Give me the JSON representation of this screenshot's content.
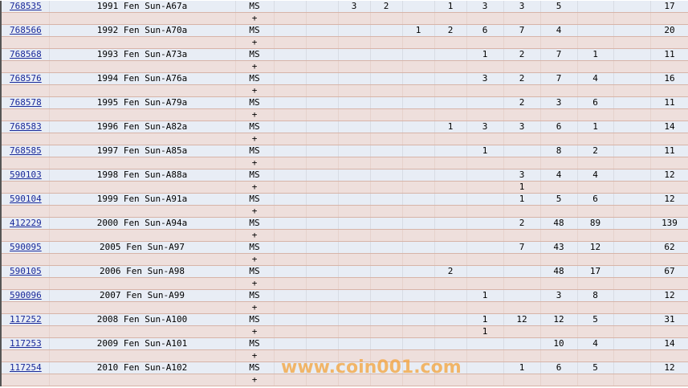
{
  "colors": {
    "main_row": "#e8edf5",
    "plus_row": "#eedfdc",
    "link": "#1a2a9a",
    "watermark": "#f5a33a"
  },
  "watermark": "www.coin001.com",
  "rows": [
    {
      "id": "768535",
      "name": "1991 Fen Sun-A67a",
      "grade": "MS",
      "plus": "+",
      "values": [
        "",
        "",
        "3",
        "2",
        "",
        "1",
        "3",
        "3",
        "5",
        "",
        "",
        ""
      ],
      "plus_values": [
        "",
        "",
        "",
        "",
        "",
        "",
        "",
        "",
        "",
        "",
        "",
        ""
      ],
      "total": "17"
    },
    {
      "id": "768566",
      "name": "1992 Fen Sun-A70a",
      "grade": "MS",
      "plus": "+",
      "values": [
        "",
        "",
        "",
        "",
        "1",
        "2",
        "6",
        "7",
        "4",
        "",
        "",
        ""
      ],
      "plus_values": [
        "",
        "",
        "",
        "",
        "",
        "",
        "",
        "",
        "",
        "",
        "",
        ""
      ],
      "total": "20"
    },
    {
      "id": "768568",
      "name": "1993 Fen Sun-A73a",
      "grade": "MS",
      "plus": "+",
      "values": [
        "",
        "",
        "",
        "",
        "",
        "",
        "1",
        "2",
        "7",
        "1",
        "",
        ""
      ],
      "plus_values": [
        "",
        "",
        "",
        "",
        "",
        "",
        "",
        "",
        "",
        "",
        "",
        ""
      ],
      "total": "11"
    },
    {
      "id": "768576",
      "name": "1994 Fen Sun-A76a",
      "grade": "MS",
      "plus": "+",
      "values": [
        "",
        "",
        "",
        "",
        "",
        "",
        "3",
        "2",
        "7",
        "4",
        "",
        ""
      ],
      "plus_values": [
        "",
        "",
        "",
        "",
        "",
        "",
        "",
        "",
        "",
        "",
        "",
        ""
      ],
      "total": "16"
    },
    {
      "id": "768578",
      "name": "1995 Fen Sun-A79a",
      "grade": "MS",
      "plus": "+",
      "values": [
        "",
        "",
        "",
        "",
        "",
        "",
        "",
        "2",
        "3",
        "6",
        "",
        ""
      ],
      "plus_values": [
        "",
        "",
        "",
        "",
        "",
        "",
        "",
        "",
        "",
        "",
        "",
        ""
      ],
      "total": "11"
    },
    {
      "id": "768583",
      "name": "1996 Fen Sun-A82a",
      "grade": "MS",
      "plus": "+",
      "values": [
        "",
        "",
        "",
        "",
        "",
        "1",
        "3",
        "3",
        "6",
        "1",
        "",
        ""
      ],
      "plus_values": [
        "",
        "",
        "",
        "",
        "",
        "",
        "",
        "",
        "",
        "",
        "",
        ""
      ],
      "total": "14"
    },
    {
      "id": "768585",
      "name": "1997 Fen Sun-A85a",
      "grade": "MS",
      "plus": "+",
      "values": [
        "",
        "",
        "",
        "",
        "",
        "",
        "1",
        "",
        "8",
        "2",
        "",
        ""
      ],
      "plus_values": [
        "",
        "",
        "",
        "",
        "",
        "",
        "",
        "",
        "",
        "",
        "",
        ""
      ],
      "total": "11"
    },
    {
      "id": "590103",
      "name": "1998 Fen Sun-A88a",
      "grade": "MS",
      "plus": "+",
      "values": [
        "",
        "",
        "",
        "",
        "",
        "",
        "",
        "3",
        "4",
        "4",
        "",
        ""
      ],
      "plus_values": [
        "",
        "",
        "",
        "",
        "",
        "",
        "",
        "1",
        "",
        "",
        "",
        ""
      ],
      "total": "12"
    },
    {
      "id": "590104",
      "name": "1999 Fen Sun-A91a",
      "grade": "MS",
      "plus": "+",
      "values": [
        "",
        "",
        "",
        "",
        "",
        "",
        "",
        "1",
        "5",
        "6",
        "",
        ""
      ],
      "plus_values": [
        "",
        "",
        "",
        "",
        "",
        "",
        "",
        "",
        "",
        "",
        "",
        ""
      ],
      "total": "12"
    },
    {
      "id": "412229",
      "name": "2000 Fen Sun-A94a",
      "grade": "MS",
      "plus": "+",
      "values": [
        "",
        "",
        "",
        "",
        "",
        "",
        "",
        "2",
        "48",
        "89",
        "",
        ""
      ],
      "plus_values": [
        "",
        "",
        "",
        "",
        "",
        "",
        "",
        "",
        "",
        "",
        "",
        ""
      ],
      "total": "139"
    },
    {
      "id": "590095",
      "name": "2005 Fen Sun-A97",
      "grade": "MS",
      "plus": "+",
      "values": [
        "",
        "",
        "",
        "",
        "",
        "",
        "",
        "7",
        "43",
        "12",
        "",
        ""
      ],
      "plus_values": [
        "",
        "",
        "",
        "",
        "",
        "",
        "",
        "",
        "",
        "",
        "",
        ""
      ],
      "total": "62"
    },
    {
      "id": "590105",
      "name": "2006 Fen Sun-A98",
      "grade": "MS",
      "plus": "+",
      "values": [
        "",
        "",
        "",
        "",
        "",
        "2",
        "",
        "",
        "48",
        "17",
        "",
        ""
      ],
      "plus_values": [
        "",
        "",
        "",
        "",
        "",
        "",
        "",
        "",
        "",
        "",
        "",
        ""
      ],
      "total": "67"
    },
    {
      "id": "590096",
      "name": "2007 Fen Sun-A99",
      "grade": "MS",
      "plus": "+",
      "values": [
        "",
        "",
        "",
        "",
        "",
        "",
        "1",
        "",
        "3",
        "8",
        "",
        ""
      ],
      "plus_values": [
        "",
        "",
        "",
        "",
        "",
        "",
        "",
        "",
        "",
        "",
        "",
        ""
      ],
      "total": "12"
    },
    {
      "id": "117252",
      "name": "2008 Fen Sun-A100",
      "grade": "MS",
      "plus": "+",
      "values": [
        "",
        "",
        "",
        "",
        "",
        "",
        "1",
        "12",
        "12",
        "5",
        "",
        ""
      ],
      "plus_values": [
        "",
        "",
        "",
        "",
        "",
        "",
        "1",
        "",
        "",
        "",
        "",
        ""
      ],
      "total": "31"
    },
    {
      "id": "117253",
      "name": "2009 Fen Sun-A101",
      "grade": "MS",
      "plus": "+",
      "values": [
        "",
        "",
        "",
        "",
        "",
        "",
        "",
        "",
        "10",
        "4",
        "",
        ""
      ],
      "plus_values": [
        "",
        "",
        "",
        "",
        "",
        "",
        "",
        "",
        "",
        "",
        "",
        ""
      ],
      "total": "14"
    },
    {
      "id": "117254",
      "name": "2010 Fen Sun-A102",
      "grade": "MS",
      "plus": "+",
      "values": [
        "",
        "",
        "",
        "",
        "",
        "",
        "",
        "1",
        "6",
        "5",
        "",
        ""
      ],
      "plus_values": [
        "",
        "",
        "",
        "",
        "",
        "",
        "",
        "",
        "",
        "",
        "",
        ""
      ],
      "total": "12"
    }
  ]
}
